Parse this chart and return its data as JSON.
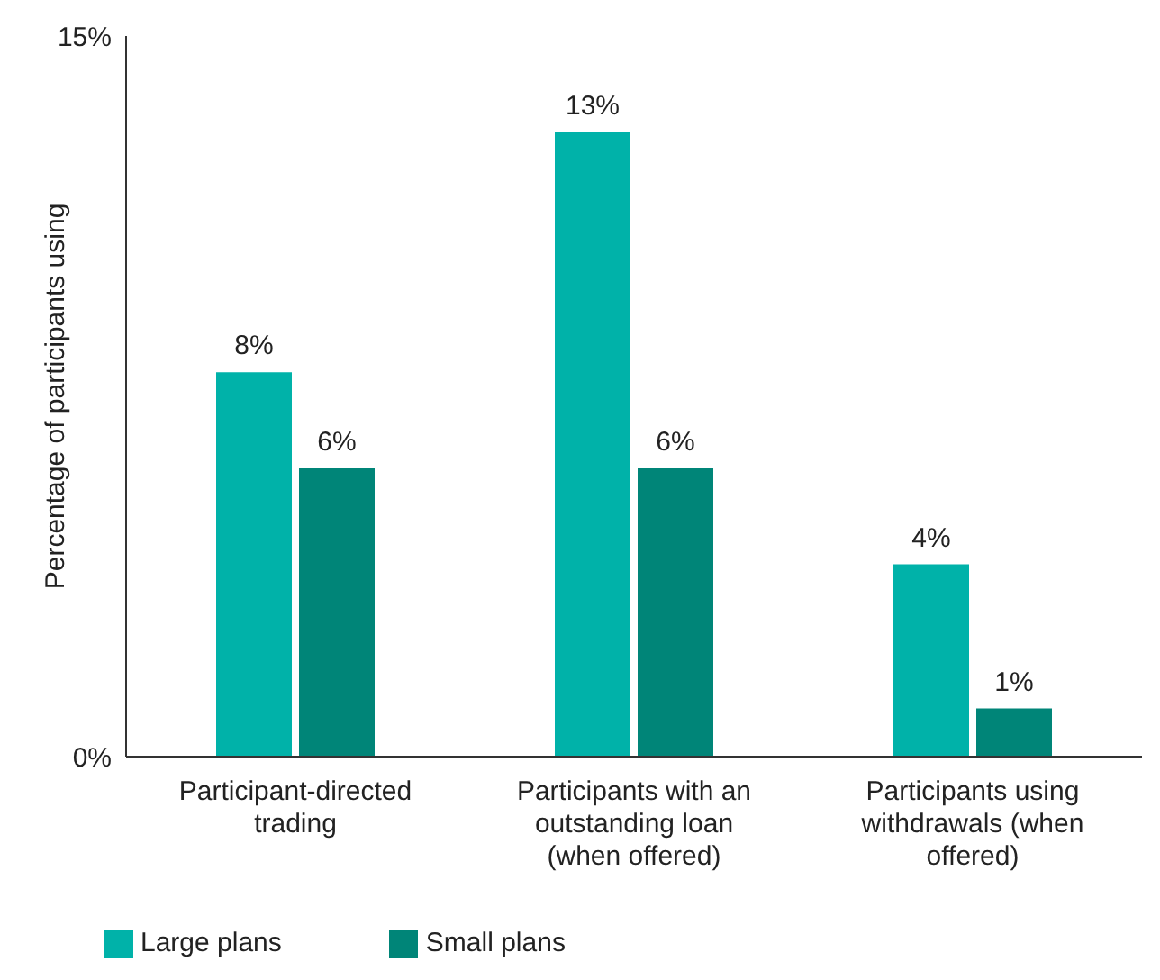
{
  "chart_data": {
    "type": "bar",
    "ylabel": "Percentage of participants using",
    "categories": [
      "Participant-directed trading",
      "Participants with an outstanding loan (when offered)",
      "Participants using withdrawals (when offered)"
    ],
    "series": [
      {
        "name": "Large plans",
        "color": "#00b2a9",
        "values": [
          8,
          13,
          4
        ],
        "value_labels": [
          "8%",
          "13%",
          "4%"
        ]
      },
      {
        "name": "Small plans",
        "color": "#008578",
        "values": [
          6,
          6,
          1
        ],
        "value_labels": [
          "6%",
          "6%",
          "1%"
        ]
      }
    ],
    "ylim": [
      0,
      15
    ],
    "yticks": [
      {
        "value": 0,
        "label": "0%"
      },
      {
        "value": 15,
        "label": "15%"
      }
    ],
    "grid": false,
    "legend": "bottom left"
  }
}
